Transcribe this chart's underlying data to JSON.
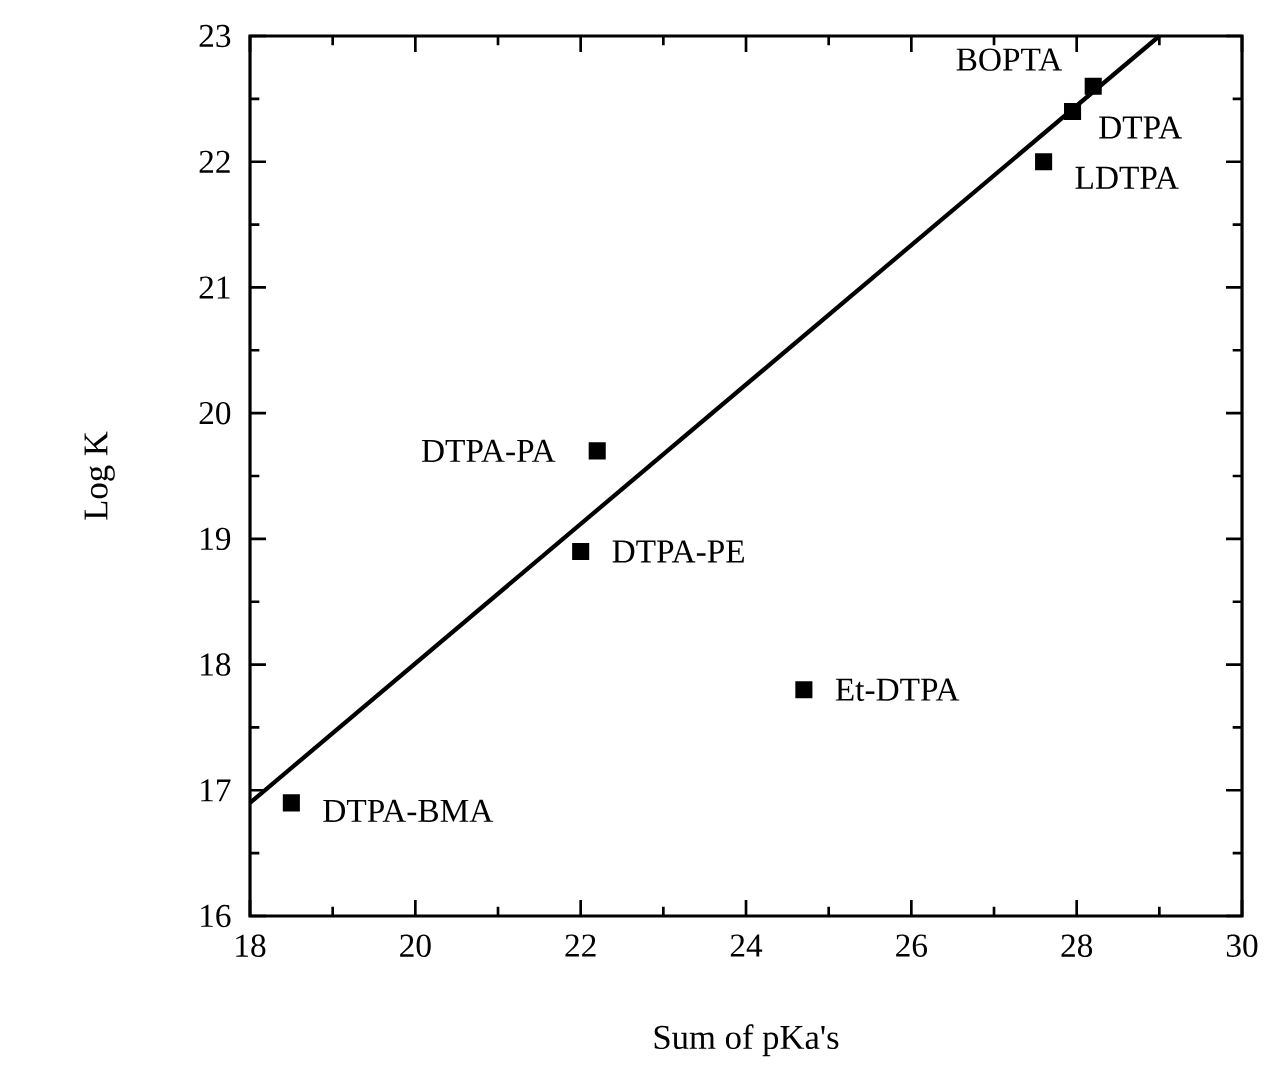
{
  "chart_data": {
    "type": "scatter",
    "xlabel": "Sum of pKa's",
    "ylabel": "Log K",
    "xlim": [
      18,
      30
    ],
    "ylim": [
      16,
      23
    ],
    "xticks": [
      18,
      20,
      22,
      24,
      26,
      28,
      30
    ],
    "yticks": [
      16,
      17,
      18,
      19,
      20,
      21,
      22,
      23
    ],
    "marker": "square",
    "grid": false,
    "series": [
      {
        "color": "#000000",
        "x": [
          28.2,
          27.95,
          27.6,
          22.2,
          22.0,
          24.7,
          18.5
        ],
        "values": [
          22.6,
          22.4,
          22.0,
          19.7,
          18.9,
          17.8,
          16.9
        ]
      },
      {
        "type": "line",
        "color": "#000000",
        "marker": "none",
        "x": [
          18,
          29
        ],
        "values": [
          16.9,
          23
        ]
      }
    ],
    "annotations": [
      {
        "text": "BOPTA",
        "x": 28.2,
        "y": 22.6
      },
      {
        "text": "DTPA",
        "x": 27.95,
        "y": 22.4
      },
      {
        "text": "LDTPA",
        "x": 27.6,
        "y": 22.0
      },
      {
        "text": "DTPA-PA",
        "x": 22.2,
        "y": 19.7
      },
      {
        "text": "DTPA-PE",
        "x": 22.0,
        "y": 18.9
      },
      {
        "text": "Et-DTPA",
        "x": 24.7,
        "y": 17.8
      },
      {
        "text": "DTPA-BMA",
        "x": 18.5,
        "y": 16.9
      }
    ]
  }
}
